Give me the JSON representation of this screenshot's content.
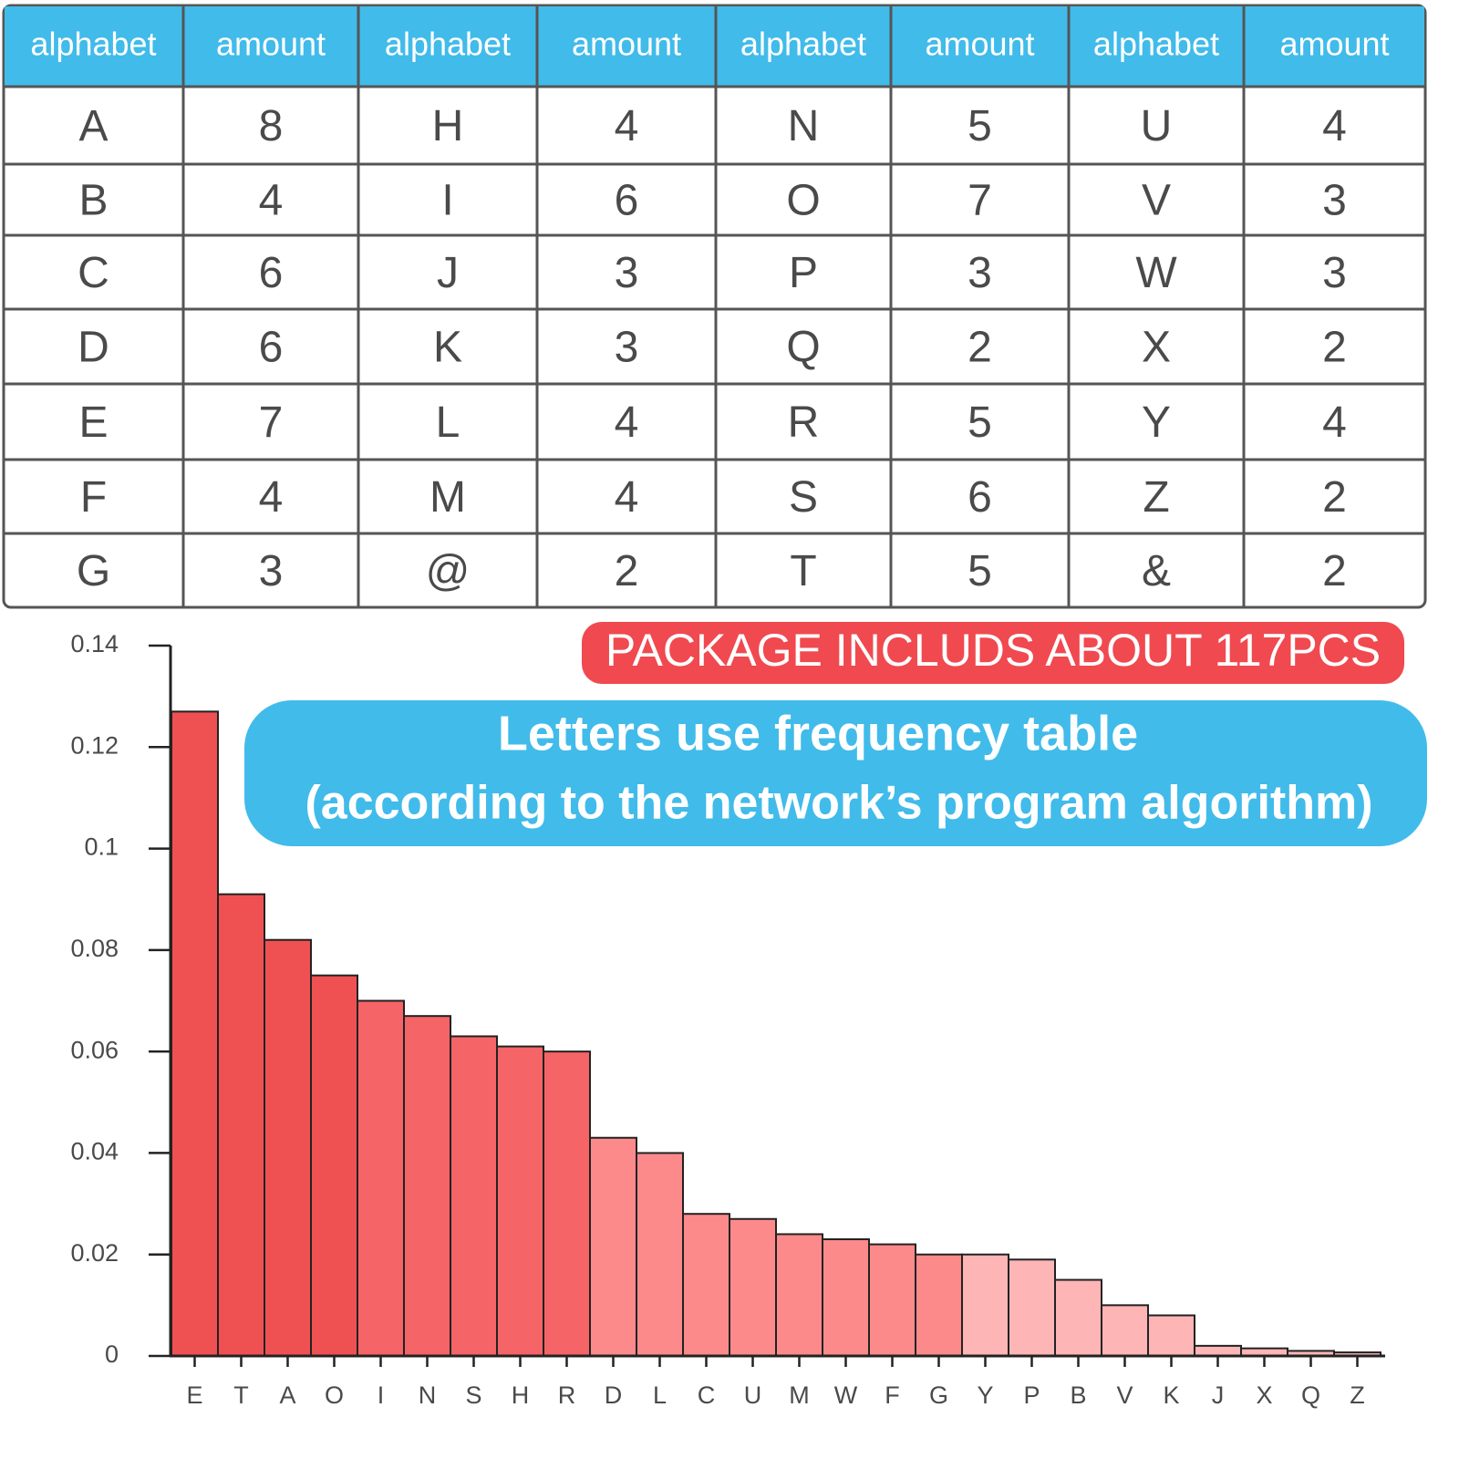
{
  "table": {
    "header": [
      "alphabet",
      "amount",
      "alphabet",
      "amount",
      "alphabet",
      "amount",
      "alphabet",
      "amount"
    ],
    "rows": [
      [
        "A",
        8,
        "H",
        4,
        "N",
        5,
        "U",
        4
      ],
      [
        "B",
        4,
        "I",
        6,
        "O",
        7,
        "V",
        3
      ],
      [
        "C",
        6,
        "J",
        3,
        "P",
        3,
        "W",
        3
      ],
      [
        "D",
        6,
        "K",
        3,
        "Q",
        2,
        "X",
        2
      ],
      [
        "E",
        7,
        "L",
        4,
        "R",
        5,
        "Y",
        4
      ],
      [
        "F",
        4,
        "M",
        4,
        "S",
        6,
        "Z",
        2
      ],
      [
        "G",
        3,
        "@",
        2,
        "T",
        5,
        "&",
        2
      ]
    ]
  },
  "chart_data": {
    "type": "bar",
    "annotation": "PACKAGE INCLUDS ABOUT 117PCS",
    "title": "Letters use frequency table",
    "subtitle": "(according to the network’s program algorithm)",
    "categories": [
      "E",
      "T",
      "A",
      "O",
      "I",
      "N",
      "S",
      "H",
      "R",
      "D",
      "L",
      "C",
      "U",
      "M",
      "W",
      "F",
      "G",
      "Y",
      "P",
      "B",
      "V",
      "K",
      "J",
      "X",
      "Q",
      "Z"
    ],
    "values": [
      0.127,
      0.091,
      0.082,
      0.075,
      0.07,
      0.067,
      0.063,
      0.061,
      0.06,
      0.043,
      0.04,
      0.028,
      0.027,
      0.024,
      0.023,
      0.022,
      0.02,
      0.02,
      0.019,
      0.015,
      0.01,
      0.008,
      0.002,
      0.0015,
      0.001,
      0.0007
    ],
    "colors": [
      "#ef5153",
      "#ef5153",
      "#ef5153",
      "#ef5153",
      "#f56466",
      "#f56466",
      "#f56466",
      "#f56466",
      "#f56466",
      "#fd8a8b",
      "#fd8a8b",
      "#fd8a8b",
      "#fd8a8b",
      "#fd8a8b",
      "#fd8a8b",
      "#fd8a8b",
      "#fd8a8b",
      "#fdb5b6",
      "#fdb5b6",
      "#fdb5b6",
      "#fdb5b6",
      "#fdb5b6",
      "#fdb5b6",
      "#fdb5b6",
      "#fdb5b6",
      "#fdb5b6"
    ],
    "ylim": [
      0,
      0.14
    ],
    "yticks": [
      0,
      0.02,
      0.04,
      0.06,
      0.08,
      0.1,
      0.12,
      0.14
    ]
  }
}
